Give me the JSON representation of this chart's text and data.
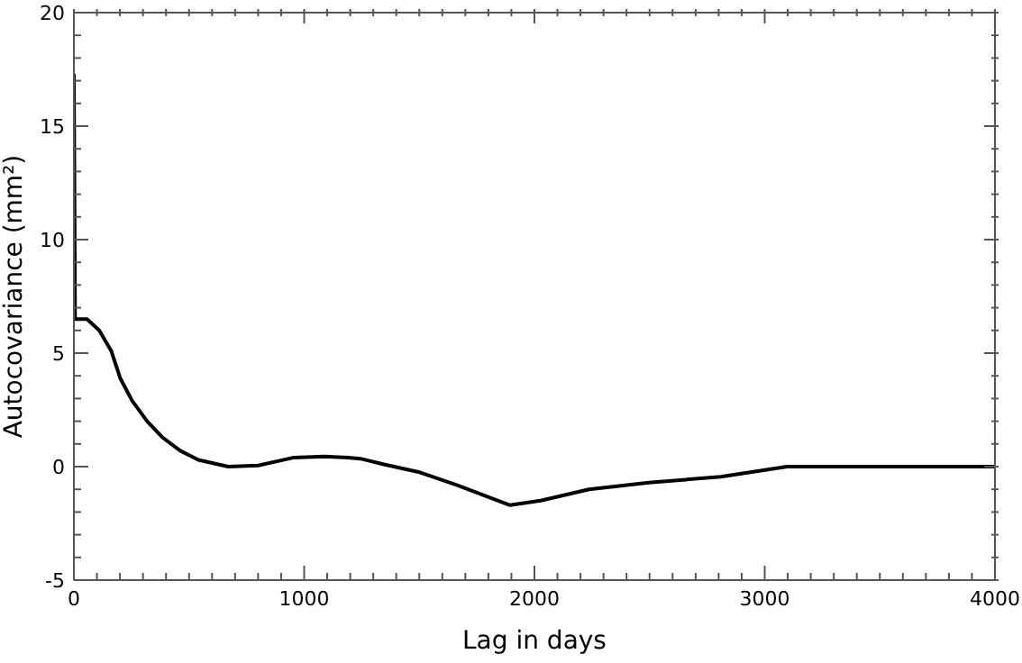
{
  "chart_data": {
    "type": "line",
    "xlabel": "Lag in days",
    "ylabel": "Autocovariance (mm²)",
    "x": [
      0,
      5,
      18,
      57,
      110,
      162,
      201,
      253,
      318,
      383,
      462,
      540,
      670,
      800,
      956,
      1088,
      1190,
      1244,
      1346,
      1479,
      1502,
      1659,
      1894,
      2027,
      2237,
      2497,
      2809,
      3097,
      4000
    ],
    "series": [
      {
        "color": "#000000",
        "values": [
          17.3,
          6.5,
          6.5,
          6.5,
          6.0,
          5.1,
          3.9,
          2.9,
          2.0,
          1.3,
          0.7,
          0.3,
          0.0,
          0.05,
          0.4,
          0.45,
          0.4,
          0.35,
          0.1,
          -0.2,
          -0.25,
          -0.8,
          -1.7,
          -1.5,
          -1.0,
          -0.7,
          -0.45,
          0.0,
          0.0
        ]
      }
    ],
    "xlim": [
      0,
      4000
    ],
    "ylim": [
      -5,
      20
    ],
    "xticks": [
      0,
      {
        "value": 100,
        "label": null
      },
      {
        "value": 200,
        "label": null
      },
      {
        "value": 300,
        "label": null
      },
      {
        "value": 400,
        "label": null
      },
      {
        "value": 500,
        "label": null
      },
      {
        "value": 600,
        "label": null
      },
      {
        "value": 700,
        "label": null
      },
      {
        "value": 800,
        "label": null
      },
      {
        "value": 900,
        "label": null
      },
      1000,
      {
        "value": 1100,
        "label": null
      },
      {
        "value": 1200,
        "label": null
      },
      {
        "value": 1300,
        "label": null
      },
      {
        "value": 1400,
        "label": null
      },
      {
        "value": 1500,
        "label": null
      },
      {
        "value": 1600,
        "label": null
      },
      {
        "value": 1700,
        "label": null
      },
      {
        "value": 1800,
        "label": null
      },
      {
        "value": 1900,
        "label": null
      },
      2000,
      {
        "value": 2100,
        "label": null
      },
      {
        "value": 2200,
        "label": null
      },
      {
        "value": 2300,
        "label": null
      },
      {
        "value": 2400,
        "label": null
      },
      {
        "value": 2500,
        "label": null
      },
      {
        "value": 2600,
        "label": null
      },
      {
        "value": 2700,
        "label": null
      },
      {
        "value": 2800,
        "label": null
      },
      {
        "value": 2900,
        "label": null
      },
      3000,
      {
        "value": 3100,
        "label": null
      },
      {
        "value": 3200,
        "label": null
      },
      {
        "value": 3300,
        "label": null
      },
      {
        "value": 3400,
        "label": null
      },
      {
        "value": 3500,
        "label": null
      },
      {
        "value": 3600,
        "label": null
      },
      {
        "value": 3700,
        "label": null
      },
      {
        "value": 3800,
        "label": null
      },
      {
        "value": 3900,
        "label": null
      },
      4000
    ],
    "yticks": [
      -5,
      {
        "value": -4,
        "label": null
      },
      {
        "value": -3,
        "label": null
      },
      {
        "value": -2,
        "label": null
      },
      {
        "value": -1,
        "label": null
      },
      0,
      {
        "value": 1,
        "label": null
      },
      {
        "value": 2,
        "label": null
      },
      {
        "value": 3,
        "label": null
      },
      {
        "value": 4,
        "label": null
      },
      5,
      {
        "value": 6,
        "label": null
      },
      {
        "value": 7,
        "label": null
      },
      {
        "value": 8,
        "label": null
      },
      {
        "value": 9,
        "label": null
      },
      10,
      {
        "value": 11,
        "label": null
      },
      {
        "value": 12,
        "label": null
      },
      {
        "value": 13,
        "label": null
      },
      {
        "value": 14,
        "label": null
      },
      15,
      {
        "value": 16,
        "label": null
      },
      {
        "value": 17,
        "label": null
      },
      {
        "value": 18,
        "label": null
      },
      {
        "value": 19,
        "label": null
      },
      20
    ],
    "grid": false,
    "marker": "none",
    "line_style": "solid"
  }
}
